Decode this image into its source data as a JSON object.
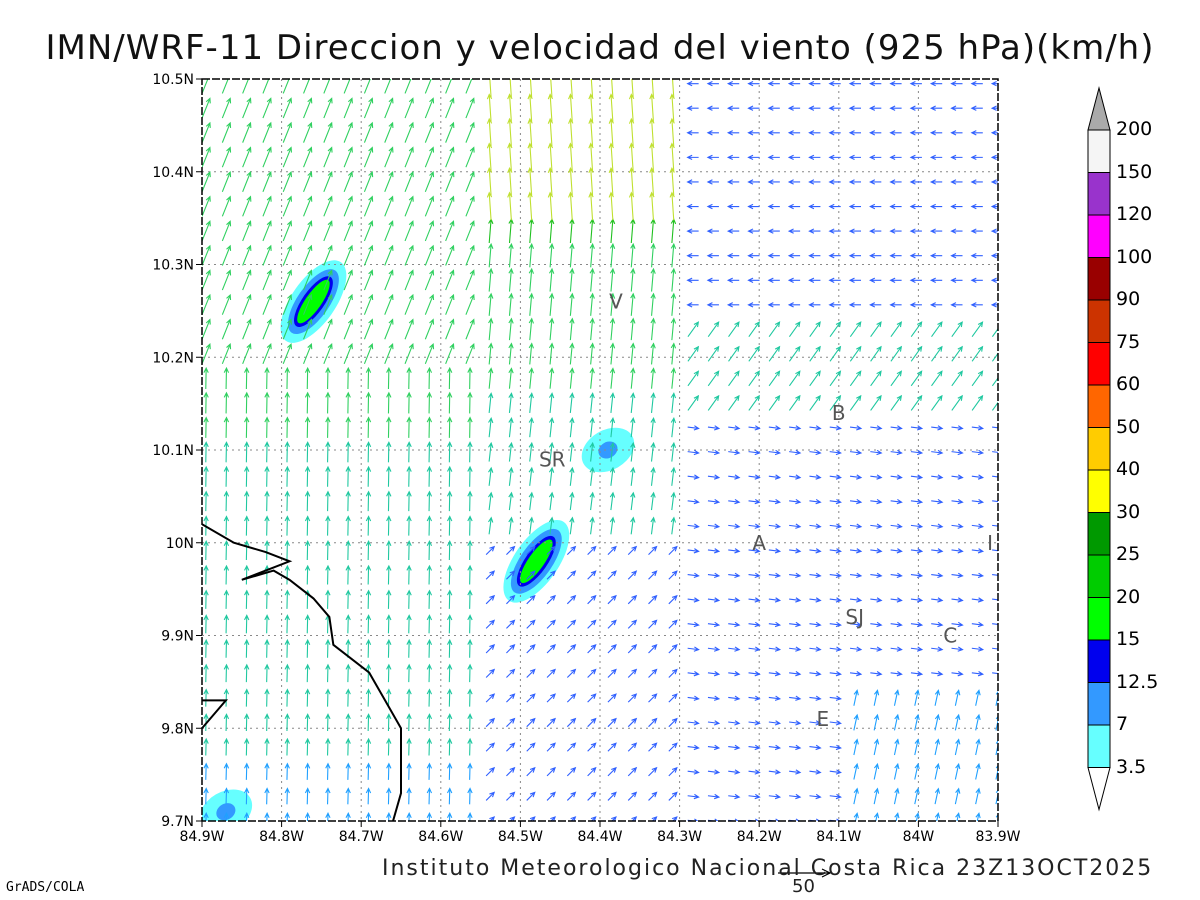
{
  "title": "IMN/WRF-11 Direccion y velocidad del viento (925 hPa)(km/h)",
  "footer": "Instituto Meteorologico Nacional Costa Rica 23Z13OCT2025",
  "software": "GrADS/COLA",
  "reference_vector": {
    "label": "50",
    "speed_kmh": 50
  },
  "axes": {
    "lon_ticks": [
      "84.9W",
      "84.8W",
      "84.7W",
      "84.6W",
      "84.5W",
      "84.4W",
      "84.3W",
      "84.2W",
      "84.1W",
      "84W",
      "83.9W"
    ],
    "lat_ticks": [
      "10.5N",
      "10.4N",
      "10.3N",
      "10.2N",
      "10.1N",
      "10N",
      "9.9N",
      "9.8N",
      "9.7N"
    ],
    "lon_range": [
      -84.9,
      -83.9
    ],
    "lat_range": [
      9.7,
      10.5
    ],
    "grid": true
  },
  "colorbar": {
    "levels": [
      "3.5",
      "7",
      "12.5",
      "15",
      "20",
      "25",
      "30",
      "40",
      "50",
      "60",
      "75",
      "90",
      "100",
      "120",
      "150",
      "200"
    ],
    "colors": [
      "#ffffff",
      "#66ffff",
      "#3399ff",
      "#0000ee",
      "#00ff00",
      "#00cc00",
      "#009900",
      "#ffff00",
      "#ffcc00",
      "#ff6600",
      "#ff0000",
      "#cc3300",
      "#990000",
      "#ff00ff",
      "#9933cc",
      "#f5f5f5",
      "#aaaaaa"
    ]
  },
  "stations": [
    {
      "code": "V",
      "lon": -84.38,
      "lat": 10.26
    },
    {
      "code": "SR",
      "lon": -84.46,
      "lat": 10.09
    },
    {
      "code": "B",
      "lon": -84.1,
      "lat": 10.14
    },
    {
      "code": "A",
      "lon": -84.2,
      "lat": 10.0
    },
    {
      "code": "I",
      "lon": -83.91,
      "lat": 10.0
    },
    {
      "code": "SJ",
      "lon": -84.08,
      "lat": 9.92
    },
    {
      "code": "C",
      "lon": -83.96,
      "lat": 9.9
    },
    {
      "code": "E",
      "lon": -84.12,
      "lat": 9.81
    }
  ],
  "coastline": [
    [
      -84.9,
      10.02
    ],
    [
      -84.86,
      10.0
    ],
    [
      -84.82,
      9.99
    ],
    [
      -84.79,
      9.98
    ],
    [
      -84.82,
      9.97
    ],
    [
      -84.85,
      9.96
    ],
    [
      -84.81,
      9.97
    ],
    [
      -84.79,
      9.96
    ],
    [
      -84.76,
      9.94
    ],
    [
      -84.74,
      9.92
    ],
    [
      -84.735,
      9.89
    ],
    [
      -84.72,
      9.88
    ],
    [
      -84.69,
      9.86
    ],
    [
      -84.67,
      9.83
    ],
    [
      -84.65,
      9.8
    ],
    [
      -84.65,
      9.73
    ],
    [
      -84.66,
      9.7
    ]
  ],
  "coastline2": [
    [
      -84.9,
      9.83
    ],
    [
      -84.87,
      9.83
    ],
    [
      -84.9,
      9.8
    ]
  ],
  "speed_maxima": [
    {
      "lon": -84.76,
      "lat": 10.26,
      "kmh": 20
    },
    {
      "lon": -84.48,
      "lat": 9.98,
      "kmh": 20
    },
    {
      "lon": -84.39,
      "lat": 10.1,
      "kmh": 7
    },
    {
      "lon": -84.87,
      "lat": 9.71,
      "kmh": 7
    }
  ]
}
